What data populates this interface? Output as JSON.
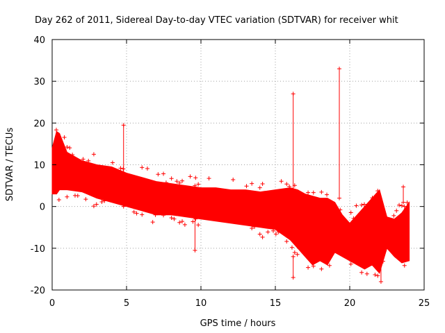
{
  "chart_data": {
    "type": "scatter",
    "title": "Day 262 of 2011, Sidereal Day-to-day VTEC variation (SDTVAR) for receiver whit",
    "xlabel": "GPS time / hours",
    "ylabel": "SDTVAR / TECUs",
    "xlim": [
      0,
      25
    ],
    "ylim": [
      -20,
      40
    ],
    "xticks": [
      0,
      5,
      10,
      15,
      20,
      25
    ],
    "yticks": [
      -20,
      -10,
      0,
      10,
      20,
      30,
      40
    ],
    "xtick_labels": [
      "0",
      "5",
      "10",
      "15",
      "20",
      "25"
    ],
    "ytick_labels": [
      "-20",
      "-10",
      "0",
      "10",
      "20",
      "30",
      "40"
    ],
    "grid": true,
    "marker": "+",
    "series_color": "#ff0000",
    "band": {
      "name": "SDTVAR",
      "x": [
        0.0,
        0.3,
        0.5,
        1.0,
        2.0,
        3.0,
        4.0,
        5.0,
        6.0,
        7.0,
        8.0,
        9.0,
        10.0,
        11.0,
        12.0,
        13.0,
        14.0,
        15.0,
        16.0,
        16.5,
        17.0,
        17.5,
        18.0,
        18.5,
        19.0,
        19.5,
        20.0,
        20.5,
        21.0,
        21.5,
        22.0,
        22.5,
        23.0,
        23.5,
        24.0
      ],
      "upper": [
        14.0,
        18.0,
        17.5,
        13.0,
        11.0,
        10.0,
        9.5,
        8.0,
        7.0,
        6.0,
        5.5,
        5.0,
        4.5,
        4.5,
        4.0,
        4.0,
        3.5,
        4.0,
        4.5,
        4.0,
        3.0,
        2.5,
        2.0,
        2.0,
        1.0,
        -2.0,
        -4.0,
        -2.0,
        0.0,
        2.0,
        4.0,
        -2.5,
        -3.0,
        -1.5,
        1.0
      ],
      "lower": [
        3.0,
        3.0,
        4.0,
        4.0,
        3.5,
        2.0,
        1.0,
        0.0,
        -1.0,
        -2.0,
        -2.0,
        -2.5,
        -3.0,
        -3.5,
        -4.0,
        -4.5,
        -5.0,
        -5.5,
        -8.0,
        -10.0,
        -12.0,
        -14.0,
        -13.0,
        -14.0,
        -11.0,
        -12.0,
        -13.0,
        -14.0,
        -15.0,
        -14.0,
        -16.0,
        -10.0,
        -12.0,
        -13.5,
        -13.0
      ]
    },
    "spikes": [
      {
        "x": 4.8,
        "ymin": 0.0,
        "ymax": 19.5
      },
      {
        "x": 9.6,
        "ymin": -10.5,
        "ymax": 5.0
      },
      {
        "x": 16.2,
        "ymin": -1.0,
        "ymax": 27.0
      },
      {
        "x": 16.2,
        "ymin": -17.0,
        "ymax": -12.0
      },
      {
        "x": 19.3,
        "ymin": 2.0,
        "ymax": 33.0
      },
      {
        "x": 22.1,
        "ymin": -18.0,
        "ymax": -10.0
      },
      {
        "x": 23.6,
        "ymin": 1.0,
        "ymax": 4.7
      }
    ]
  }
}
